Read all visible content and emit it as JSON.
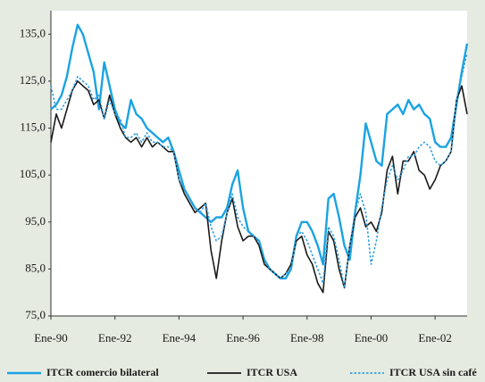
{
  "chart_data": {
    "type": "line",
    "categories": [
      "Ene-90",
      null,
      null,
      null,
      null,
      null,
      null,
      null,
      null,
      null,
      null,
      null,
      "Ene-92",
      null,
      null,
      null,
      null,
      null,
      null,
      null,
      null,
      null,
      null,
      null,
      "Ene-94",
      null,
      null,
      null,
      null,
      null,
      null,
      null,
      null,
      null,
      null,
      null,
      "Ene-96",
      null,
      null,
      null,
      null,
      null,
      null,
      null,
      null,
      null,
      null,
      null,
      "Ene-98",
      null,
      null,
      null,
      null,
      null,
      null,
      null,
      null,
      null,
      null,
      null,
      "Ene-00",
      null,
      null,
      null,
      null,
      null,
      null,
      null,
      null,
      null,
      null,
      null,
      "Ene-02",
      null,
      null,
      null,
      null,
      null,
      null
    ],
    "series": [
      {
        "name": "ITCR comercio bilateral",
        "color": "#1aa3e2",
        "line_style": "solid",
        "values": [
          119,
          120,
          122,
          126,
          132,
          137,
          135,
          131,
          127,
          119,
          129,
          124,
          119,
          116,
          115,
          121,
          118,
          117,
          115,
          114,
          113,
          112,
          113,
          110,
          106,
          102,
          100,
          98,
          97,
          96,
          95,
          96,
          96,
          98,
          103,
          106,
          98,
          93,
          92,
          91,
          87,
          85,
          84,
          83,
          83,
          85,
          92,
          95,
          95,
          93,
          90,
          86,
          100,
          101,
          96,
          90,
          87,
          97,
          105,
          116,
          112,
          108,
          107,
          118,
          119,
          120,
          118,
          121,
          119,
          120,
          118,
          117,
          112,
          111,
          111,
          113,
          120,
          127,
          133
        ]
      },
      {
        "name": "ITCR USA",
        "color": "#1a1a1a",
        "line_style": "solid",
        "values": [
          112,
          118,
          115,
          119,
          123,
          125,
          124,
          123,
          120,
          121,
          117,
          122,
          118,
          115,
          113,
          112,
          113,
          111,
          113,
          111,
          112,
          111,
          110,
          110,
          104,
          101,
          99,
          97,
          98,
          99,
          89,
          83,
          91,
          97,
          100,
          94,
          91,
          92,
          92,
          90,
          86,
          85,
          84,
          83,
          84,
          86,
          91,
          92,
          88,
          86,
          82,
          80,
          93,
          91,
          85,
          81,
          90,
          96,
          98,
          94,
          95,
          93,
          97,
          106,
          109,
          101,
          108,
          108,
          110,
          106,
          105,
          102,
          104,
          107,
          108,
          110,
          121,
          124,
          118
        ]
      },
      {
        "name": "ITCR USA sin café",
        "color": "#2f9fe0",
        "line_style": "dotted",
        "values": [
          124,
          119,
          119,
          121,
          123,
          126,
          125,
          124,
          121,
          122,
          117,
          121,
          118,
          117,
          113,
          113,
          114,
          112,
          114,
          112,
          112,
          111,
          111,
          110,
          104,
          102,
          100,
          98,
          97,
          99,
          94,
          91,
          92,
          97,
          101,
          96,
          94,
          93,
          92,
          91,
          87,
          85,
          84,
          83,
          84,
          85,
          92,
          93,
          91,
          88,
          85,
          82,
          94,
          92,
          87,
          81,
          90,
          97,
          101,
          97,
          86,
          91,
          98,
          104,
          107,
          104,
          106,
          109,
          109,
          111,
          112,
          111,
          108,
          107,
          108,
          110,
          121,
          126,
          131
        ]
      }
    ],
    "ylim": [
      75,
      140
    ],
    "yticks": [
      {
        "value": 75,
        "label": "75,0"
      },
      {
        "value": 85,
        "label": "85,0"
      },
      {
        "value": 95,
        "label": "95,0"
      },
      {
        "value": 105,
        "label": "105,0"
      },
      {
        "value": 115,
        "label": "115,0"
      },
      {
        "value": 125,
        "label": "125,0"
      },
      {
        "value": 135,
        "label": "135,0"
      }
    ],
    "grid": false,
    "legend": "bottom"
  }
}
